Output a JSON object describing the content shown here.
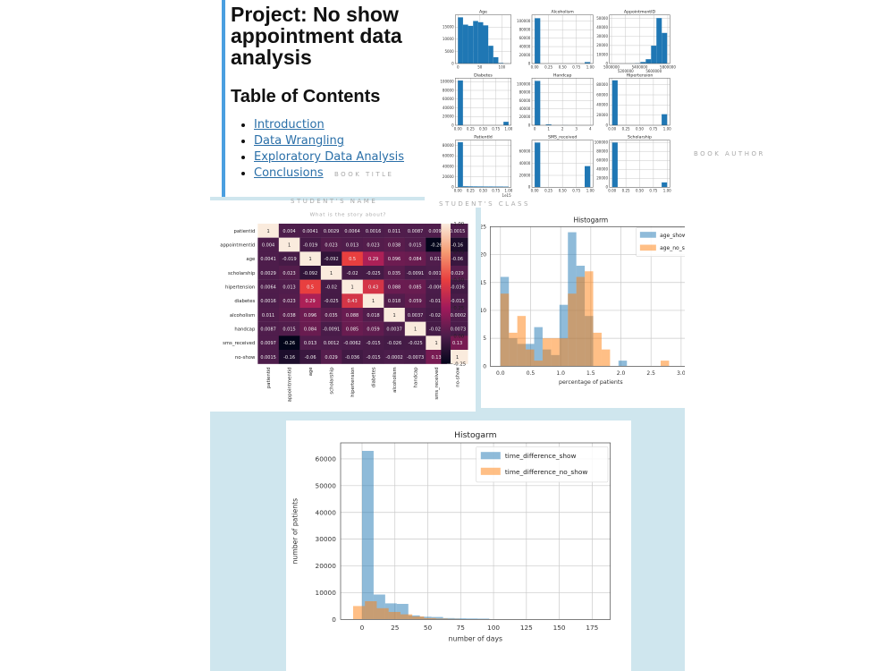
{
  "notebook": {
    "title": "Project: No show appointment data analysis",
    "toc_heading": "Table of Contents",
    "toc": [
      "Introduction",
      "Data Wrangling",
      "Exploratory Data Analysis",
      "Conclusions"
    ]
  },
  "watermarks": {
    "book_title": "BOOK TITLE",
    "book_author": "BOOK AUTHOR",
    "student_name": "STUDENT'S NAME",
    "student_class": "STUDENT'S CLASS",
    "story": "What is the story about?"
  },
  "colors": {
    "accent_bar": "#4a9fe0",
    "frame": "#cfe6ee",
    "link": "#2a6fa8",
    "hist_bar": "#1f77b4",
    "series_blue": "#1f77b4",
    "series_orange": "#ff7f0e"
  },
  "chart_data": [
    {
      "type": "bar",
      "grid": true,
      "subplots": [
        {
          "title": "Age",
          "xlim": [
            -6,
            121
          ],
          "ylim": [
            0,
            20000
          ],
          "xticks": [
            0,
            50,
            100
          ],
          "xtick_labels": [
            "0",
            "50",
            "100"
          ],
          "yticks": [
            0,
            5000,
            10000,
            15000
          ],
          "ytick_labels": [
            "0",
            "5000",
            "10000",
            "15000"
          ],
          "bin_start": 0,
          "bin_width": 11.5,
          "values": [
            19000,
            16000,
            15500,
            17500,
            17000,
            15700,
            7300,
            2600,
            250,
            30
          ]
        },
        {
          "title": "Alcoholism",
          "xlim": [
            -0.05,
            1.05
          ],
          "ylim": [
            0,
            115000
          ],
          "xticks": [
            0,
            0.25,
            0.5,
            0.75,
            1
          ],
          "xtick_labels": [
            "0.00",
            "0.25",
            "0.50",
            "0.75",
            "1.00"
          ],
          "yticks": [
            0,
            20000,
            40000,
            60000,
            80000,
            100000
          ],
          "ytick_labels": [
            "0",
            "20000",
            "40000",
            "60000",
            "80000",
            "100000"
          ],
          "bin_start": 0,
          "bin_width": 0.1,
          "values": [
            107200,
            0,
            0,
            0,
            0,
            0,
            0,
            0,
            0,
            3360
          ]
        },
        {
          "title": "AppointmentID",
          "xlim": [
            4970000,
            5830000
          ],
          "ylim": [
            0,
            54000
          ],
          "xticks": [
            5000000,
            5200000,
            5400000,
            5600000,
            5800000
          ],
          "xtick_labels": [
            "5000000",
            "5200000",
            "5400000",
            "5600000",
            "5800000"
          ],
          "yticks": [
            0,
            10000,
            20000,
            30000,
            40000,
            50000
          ],
          "ytick_labels": [
            "0",
            "10000",
            "20000",
            "30000",
            "40000",
            "50000"
          ],
          "bin_start": 5030230,
          "bin_width": 76025,
          "values": [
            5,
            10,
            30,
            80,
            350,
            1700,
            4800,
            19800,
            50500,
            34000
          ]
        },
        {
          "title": "Diabetes",
          "xlim": [
            -0.05,
            1.05
          ],
          "ylim": [
            0,
            108000
          ],
          "xticks": [
            0,
            0.25,
            0.5,
            0.75,
            1
          ],
          "xtick_labels": [
            "0.00",
            "0.25",
            "0.50",
            "0.75",
            "1.00"
          ],
          "yticks": [
            0,
            20000,
            40000,
            60000,
            80000,
            100000
          ],
          "ytick_labels": [
            "0",
            "20000",
            "40000",
            "60000",
            "80000",
            "100000"
          ],
          "bin_start": 0,
          "bin_width": 0.1,
          "values": [
            102600,
            0,
            0,
            0,
            0,
            0,
            0,
            0,
            0,
            7940
          ]
        },
        {
          "title": "Handcap",
          "xlim": [
            -0.2,
            4.2
          ],
          "ylim": [
            0,
            115000
          ],
          "xticks": [
            0,
            1,
            2,
            3,
            4
          ],
          "xtick_labels": [
            "0",
            "1",
            "2",
            "3",
            "4"
          ],
          "yticks": [
            0,
            20000,
            40000,
            60000,
            80000,
            100000
          ],
          "ytick_labels": [
            "0",
            "20000",
            "40000",
            "60000",
            "80000",
            "100000"
          ],
          "bin_start": 0,
          "bin_width": 0.4,
          "values": [
            108300,
            0,
            2040,
            0,
            0,
            183,
            0,
            13,
            0,
            3
          ]
        },
        {
          "title": "Hipertension",
          "xlim": [
            -0.05,
            1.05
          ],
          "ylim": [
            0,
            93000
          ],
          "xticks": [
            0,
            0.25,
            0.5,
            0.75,
            1
          ],
          "xtick_labels": [
            "0.00",
            "0.25",
            "0.50",
            "0.75",
            "1.00"
          ],
          "yticks": [
            0,
            20000,
            40000,
            60000,
            80000
          ],
          "ytick_labels": [
            "0",
            "20000",
            "40000",
            "60000",
            "80000"
          ],
          "bin_start": 0,
          "bin_width": 0.1,
          "values": [
            88700,
            0,
            0,
            0,
            0,
            0,
            0,
            0,
            0,
            21800
          ]
        },
        {
          "title": "PatientId",
          "xlim": [
            -0.05,
            1.05
          ],
          "ylim": [
            0,
            90000
          ],
          "xticks": [
            0,
            0.25,
            0.5,
            0.75,
            1
          ],
          "xtick_labels": [
            "0.00",
            "0.25",
            "0.50",
            "0.75",
            "1.00"
          ],
          "yticks": [
            0,
            20000,
            40000,
            60000,
            80000
          ],
          "ytick_labels": [
            "0",
            "20000",
            "40000",
            "60000",
            "80000"
          ],
          "offset_label": "1e15",
          "bin_start": 0,
          "bin_width": 0.1,
          "values": [
            86000,
            2000,
            1800,
            1700,
            1600,
            1500,
            1500,
            1400,
            1400,
            1300
          ]
        },
        {
          "title": "SMS_received",
          "xlim": [
            -0.05,
            1.05
          ],
          "ylim": [
            0,
            79000
          ],
          "xticks": [
            0,
            0.25,
            0.5,
            0.75,
            1
          ],
          "xtick_labels": [
            "0.00",
            "0.25",
            "0.50",
            "0.75",
            "1.00"
          ],
          "yticks": [
            0,
            20000,
            40000,
            60000
          ],
          "ytick_labels": [
            "0",
            "20000",
            "40000",
            "60000"
          ],
          "bin_start": 0,
          "bin_width": 0.1,
          "values": [
            75000,
            0,
            0,
            0,
            0,
            0,
            0,
            0,
            0,
            35500
          ]
        },
        {
          "title": "Scholarship",
          "xlim": [
            -0.05,
            1.05
          ],
          "ylim": [
            0,
            105000
          ],
          "xticks": [
            0,
            0.25,
            0.5,
            0.75,
            1
          ],
          "xtick_labels": [
            "0.00",
            "0.25",
            "0.50",
            "0.75",
            "1.00"
          ],
          "yticks": [
            0,
            20000,
            40000,
            60000,
            80000,
            100000
          ],
          "ytick_labels": [
            "0",
            "20000",
            "40000",
            "60000",
            "80000",
            "100000"
          ],
          "bin_start": 0,
          "bin_width": 0.1,
          "values": [
            99700,
            0,
            0,
            0,
            0,
            0,
            0,
            0,
            0,
            10900
          ]
        }
      ]
    },
    {
      "type": "heatmap",
      "labels": [
        "patientid",
        "appointmentid",
        "age",
        "scholarship",
        "hipertension",
        "diabetes",
        "alcoholism",
        "handcap",
        "sms_received",
        "no-show"
      ],
      "matrix": [
        [
          1,
          0.004,
          0.0041,
          0.0029,
          0.0064,
          0.0016,
          0.011,
          0.0087,
          0.0097,
          0.0015
        ],
        [
          0.004,
          1,
          -0.019,
          0.023,
          0.013,
          0.023,
          0.038,
          0.015,
          -0.26,
          -0.16
        ],
        [
          0.0041,
          -0.019,
          1,
          -0.092,
          0.5,
          0.29,
          0.096,
          0.084,
          0.013,
          -0.06
        ],
        [
          0.0029,
          0.023,
          -0.092,
          1,
          -0.02,
          -0.025,
          0.035,
          -0.0091,
          0.0012,
          0.029
        ],
        [
          0.0064,
          0.013,
          0.5,
          -0.02,
          1,
          0.43,
          0.088,
          0.085,
          -0.0062,
          -0.036
        ],
        [
          0.0016,
          0.023,
          0.29,
          -0.025,
          0.43,
          1,
          0.018,
          0.059,
          -0.015,
          -0.015
        ],
        [
          0.011,
          0.038,
          0.096,
          0.035,
          0.088,
          0.018,
          1,
          0.0037,
          -0.026,
          -0.0002
        ],
        [
          0.0087,
          0.015,
          0.084,
          -0.0091,
          0.085,
          0.059,
          0.0037,
          1,
          -0.025,
          -0.0073
        ],
        [
          0.0097,
          -0.26,
          0.013,
          0.0012,
          -0.0062,
          -0.015,
          -0.026,
          -0.025,
          1,
          0.13
        ],
        [
          0.0015,
          -0.16,
          -0.06,
          0.029,
          -0.036,
          -0.015,
          -0.0002,
          -0.0073,
          0.13,
          1
        ]
      ],
      "vmin": -0.25,
      "vmax": 1.0,
      "colormap": "rocket",
      "colorbar_ticks": [
        1.0,
        0.75,
        0.5,
        0.25,
        0.0,
        -0.25
      ],
      "colorbar_tick_labels": [
        "1.00",
        "0.75",
        "0.50",
        "0.25",
        "0.00",
        "-0.25"
      ]
    },
    {
      "type": "bar",
      "title": "Histogarm",
      "xlabel": "percentage of patients",
      "ylabel": "",
      "xlim": [
        -0.17,
        3.17
      ],
      "ylim": [
        0,
        25
      ],
      "xticks": [
        0,
        0.5,
        1,
        1.5,
        2,
        2.5,
        3
      ],
      "xtick_labels": [
        "0.0",
        "0.5",
        "1.0",
        "1.5",
        "2.0",
        "2.5",
        "3.0"
      ],
      "yticks": [
        0,
        5,
        10,
        15,
        20,
        25
      ],
      "ytick_labels": [
        "0",
        "5",
        "10",
        "15",
        "20",
        "25"
      ],
      "grid": true,
      "legend": "top-right",
      "series": [
        {
          "name": "age_show",
          "color": "#1f77b4",
          "bin_start": 0,
          "bin_width": 0.14,
          "values": [
            16,
            5,
            4,
            4,
            7,
            3,
            2,
            11,
            24,
            18,
            9,
            0,
            0,
            0,
            1,
            0,
            0,
            0,
            0,
            0,
            0
          ]
        },
        {
          "name": "age_no_show",
          "color": "#ff7f0e",
          "bin_start": 0,
          "bin_width": 0.14,
          "values": [
            13,
            6,
            9,
            3,
            1,
            5,
            5,
            5,
            13,
            16,
            17,
            6,
            3,
            0,
            0,
            0,
            0,
            0,
            0,
            1,
            0
          ]
        }
      ]
    },
    {
      "type": "bar",
      "title": "Histogarm",
      "xlabel": "number of days",
      "ylabel": "number of patients",
      "xlim": [
        -16.3,
        188.8
      ],
      "ylim": [
        0,
        66000
      ],
      "xticks": [
        0,
        25,
        50,
        75,
        100,
        125,
        150,
        175
      ],
      "xtick_labels": [
        "0",
        "25",
        "50",
        "75",
        "100",
        "125",
        "150",
        "175"
      ],
      "yticks": [
        0,
        10000,
        20000,
        30000,
        40000,
        50000,
        60000
      ],
      "ytick_labels": [
        "0",
        "10000",
        "20000",
        "30000",
        "40000",
        "50000",
        "60000"
      ],
      "grid": true,
      "legend": "top-right",
      "series": [
        {
          "name": "time_difference_show",
          "color": "#1f77b4",
          "bin_start": 0,
          "bin_width": 8.8,
          "values": [
            63000,
            9300,
            6000,
            5800,
            1500,
            1000,
            900,
            500,
            400,
            350,
            300
          ]
        },
        {
          "name": "time_difference_no_show",
          "color": "#ff7f0e",
          "bin_start": -6.8,
          "bin_width": 9,
          "values": [
            5000,
            6800,
            4200,
            2800,
            1900,
            1100,
            500,
            300,
            200,
            100
          ]
        }
      ]
    }
  ]
}
